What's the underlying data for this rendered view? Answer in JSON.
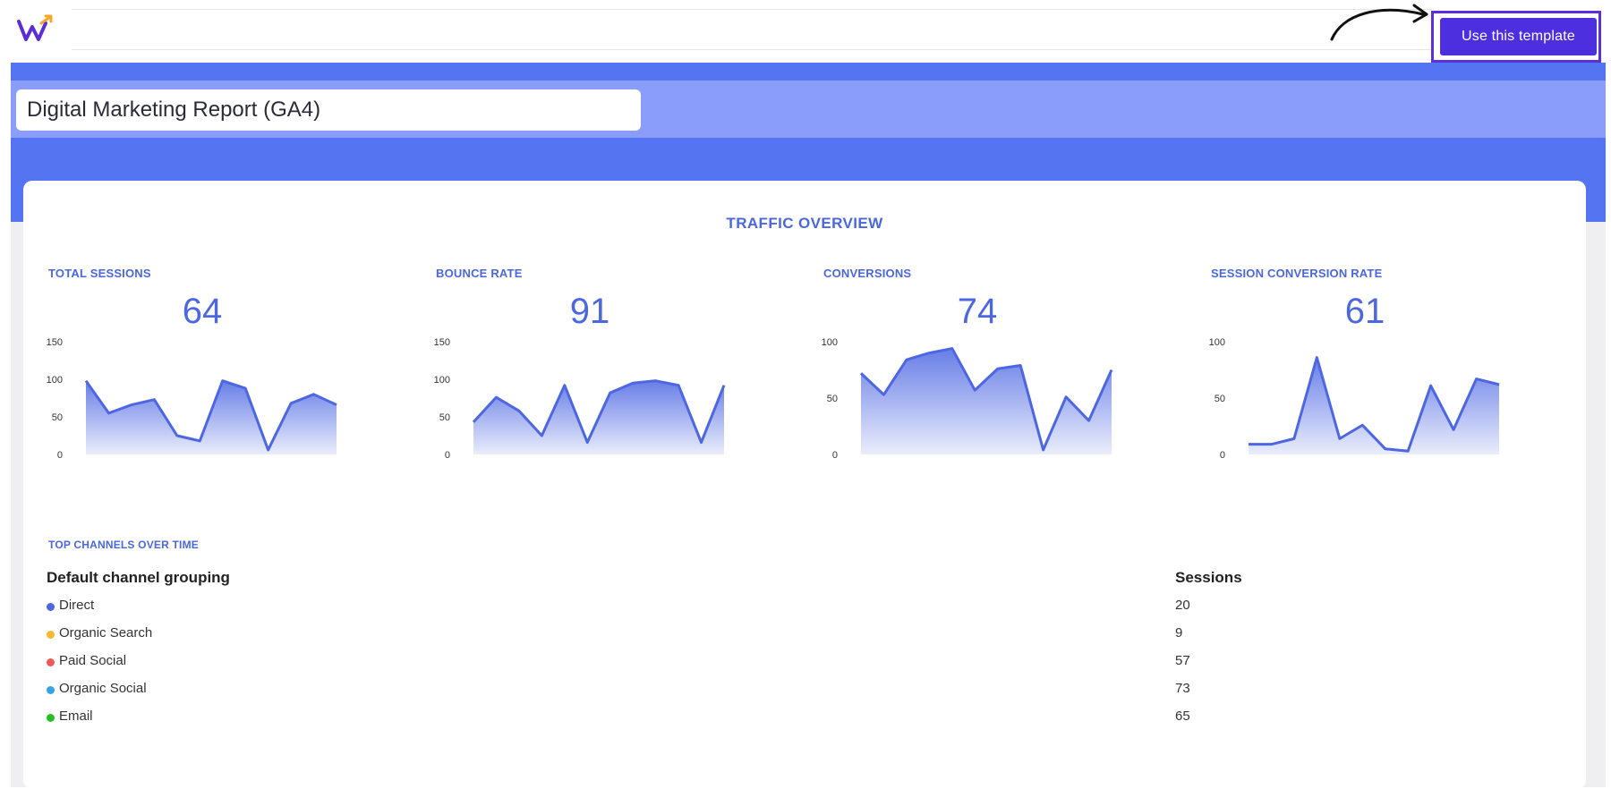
{
  "header": {
    "cta_label": "Use this template"
  },
  "report": {
    "title": "Digital Marketing Report (GA4)"
  },
  "traffic": {
    "section_title": "TRAFFIC OVERVIEW",
    "metrics": [
      {
        "label": "TOTAL SESSIONS",
        "value": "64"
      },
      {
        "label": "BOUNCE RATE",
        "value": "91"
      },
      {
        "label": "CONVERSIONS",
        "value": "74"
      },
      {
        "label": "SESSION CONVERSION RATE",
        "value": "61"
      }
    ]
  },
  "chart_data": [
    {
      "type": "area",
      "ylim": [
        0,
        150
      ],
      "yticks": [
        "150",
        "100",
        "50",
        "0"
      ],
      "color": "#4d67e2",
      "values": [
        98,
        55,
        66,
        73,
        25,
        18,
        98,
        88,
        6,
        68,
        80,
        66
      ]
    },
    {
      "type": "area",
      "ylim": [
        0,
        150
      ],
      "yticks": [
        "150",
        "100",
        "50",
        "0"
      ],
      "color": "#4d67e2",
      "values": [
        43,
        76,
        58,
        25,
        92,
        16,
        82,
        95,
        98,
        92,
        16,
        92
      ]
    },
    {
      "type": "area",
      "ylim": [
        0,
        100
      ],
      "yticks": [
        "100",
        "50",
        "0"
      ],
      "color": "#4d67e2",
      "values": [
        72,
        53,
        84,
        90,
        94,
        57,
        76,
        79,
        4,
        51,
        30,
        75
      ]
    },
    {
      "type": "area",
      "ylim": [
        0,
        100
      ],
      "yticks": [
        "100",
        "50",
        "0"
      ],
      "color": "#4d67e2",
      "values": [
        9,
        9,
        14,
        86,
        14,
        26,
        5,
        3,
        61,
        22,
        67,
        62
      ]
    }
  ],
  "channels": {
    "section_title": "TOP CHANNELS OVER TIME",
    "col_grouping": "Default channel grouping",
    "col_sessions": "Sessions",
    "rows": [
      {
        "name": "Direct",
        "sessions": "20",
        "color": "#4d67e2"
      },
      {
        "name": "Organic Search",
        "sessions": "9",
        "color": "#f5b82e"
      },
      {
        "name": "Paid Social",
        "sessions": "57",
        "color": "#ee5a5a"
      },
      {
        "name": "Organic Social",
        "sessions": "73",
        "color": "#3aa0e8"
      },
      {
        "name": "Email",
        "sessions": "65",
        "color": "#26c026"
      }
    ]
  }
}
